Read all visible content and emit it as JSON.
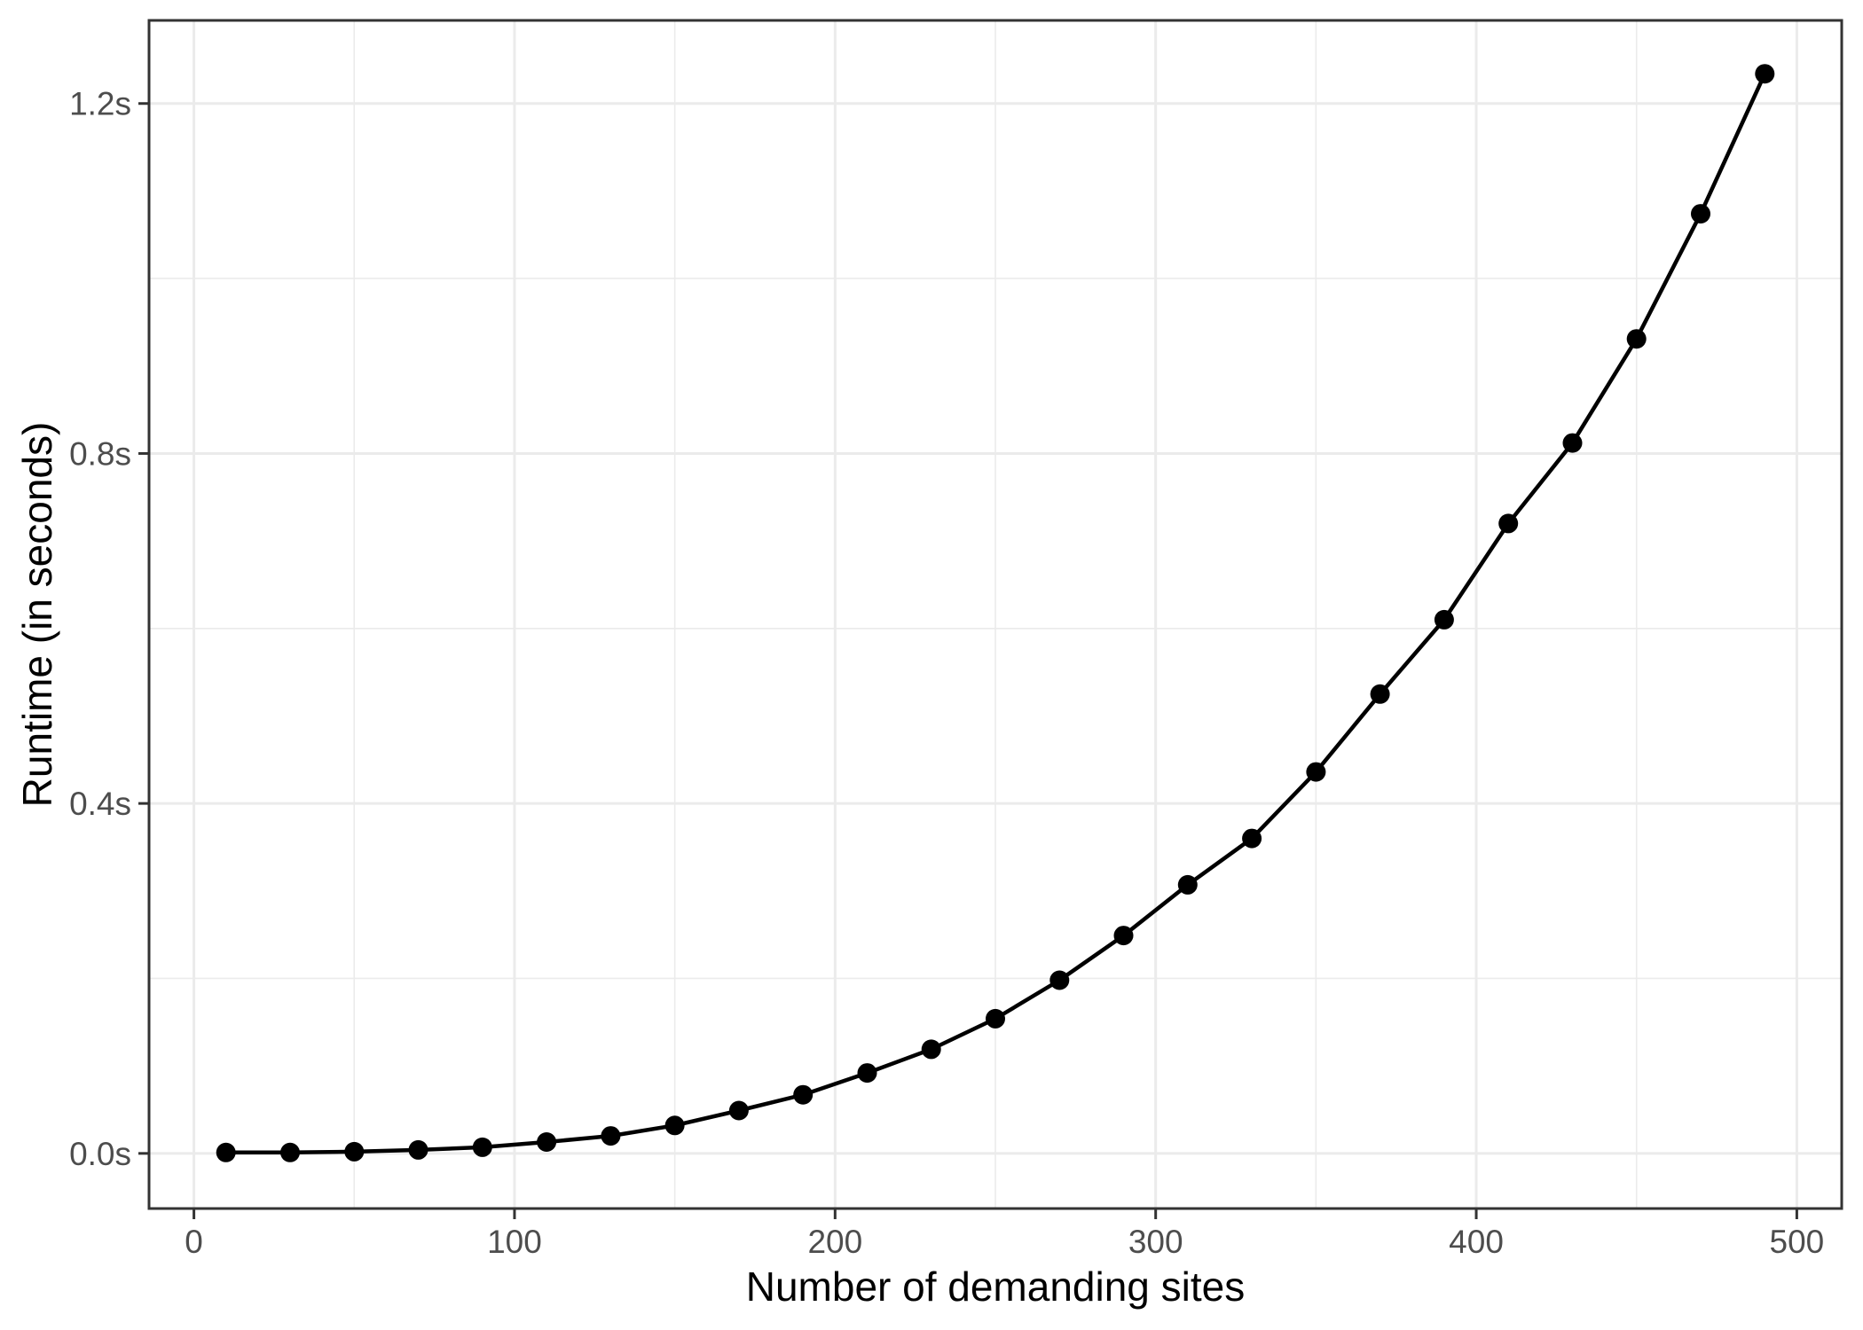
{
  "chart_data": {
    "type": "line",
    "title": "",
    "xlabel": "Number of demanding sites",
    "ylabel": "Runtime (in seconds)",
    "x": [
      10,
      30,
      50,
      70,
      90,
      110,
      130,
      150,
      170,
      190,
      210,
      230,
      250,
      270,
      290,
      310,
      330,
      350,
      370,
      390,
      410,
      430,
      450,
      470,
      490
    ],
    "series": [
      {
        "name": "runtime_seconds",
        "values": [
          0.001,
          0.001,
          0.002,
          0.004,
          0.007,
          0.013,
          0.02,
          0.032,
          0.049,
          0.067,
          0.092,
          0.119,
          0.154,
          0.198,
          0.249,
          0.307,
          0.36,
          0.436,
          0.525,
          0.61,
          0.72,
          0.812,
          0.931,
          1.074,
          1.234
        ]
      }
    ],
    "x_ticks": {
      "values": [
        0,
        100,
        200,
        300,
        400,
        500
      ],
      "labels": [
        "0",
        "100",
        "200",
        "300",
        "400",
        "500"
      ]
    },
    "y_ticks": {
      "values": [
        0,
        0.4,
        0.8,
        1.2
      ],
      "labels": [
        "0.0s",
        "0.4s",
        "0.8s",
        "1.2s"
      ]
    },
    "x_minor_ticks": [
      50,
      150,
      250,
      350,
      450
    ],
    "y_minor_ticks": [
      0.2,
      0.6,
      1.0
    ],
    "xlim": [
      -14,
      514
    ],
    "ylim": [
      -0.063,
      1.295
    ],
    "grid": true,
    "legend": "none",
    "style": {
      "line_color": "#000000",
      "point_color": "#000000",
      "grid_major_color": "#ebebeb",
      "grid_minor_color": "#ebebeb",
      "panel_border_color": "#333333",
      "tick_mark_color": "#333333",
      "tick_label_color": "#4d4d4d",
      "axis_title_color": "#000000",
      "panel_background": "#ffffff",
      "page_background": "#ffffff"
    }
  }
}
